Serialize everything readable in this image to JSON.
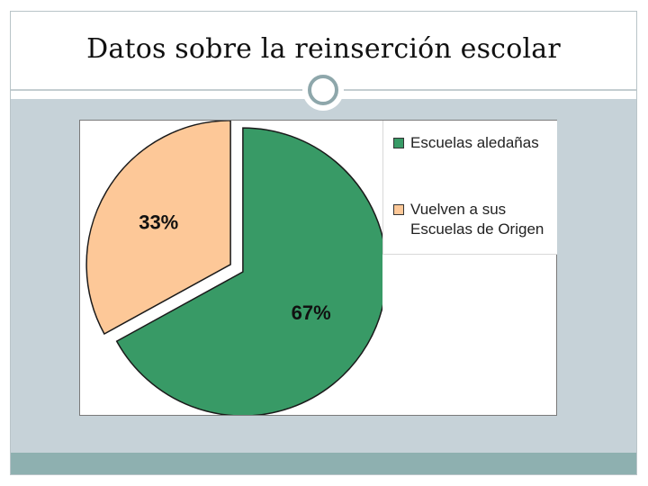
{
  "slide": {
    "title": "Datos sobre la reinserción escolar"
  },
  "colors": {
    "title_rule": "#c4cdd1",
    "content_band": "#c6d2d8",
    "footer_band": "#8eb0b0",
    "ornament": "#8ea7ab"
  },
  "chart_data": {
    "type": "pie",
    "title": "",
    "slices": [
      {
        "label": "Escuelas aledañas",
        "value": 67,
        "display": "67%",
        "color": "#389a66"
      },
      {
        "label": "Vuelven a sus Escuelas de Origen",
        "value": 33,
        "display": "33%",
        "color": "#fdc898"
      }
    ],
    "exploded": true,
    "legend_position": "right"
  }
}
